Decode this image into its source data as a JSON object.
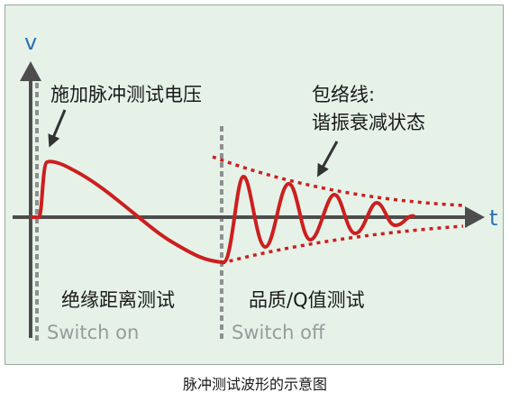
{
  "diagram": {
    "y_axis_label": "v",
    "x_axis_label": "t",
    "pulse_label": "施加脉冲测试电压",
    "envelope_label_line1": "包络线:",
    "envelope_label_line2": "谐振衰减状态",
    "insulation_label": "绝缘距离测试",
    "quality_label": "品质/Q值测试",
    "switch_on_label": "Switch on",
    "switch_off_label": "Switch off",
    "colors": {
      "background": "#e6f2e8",
      "axis": "#4d4d4d",
      "waveform": "#cc1f1f",
      "switch_line": "#8f8f8f",
      "axis_label": "#2a72b5"
    }
  },
  "caption": "脉冲测试波形的示意图"
}
